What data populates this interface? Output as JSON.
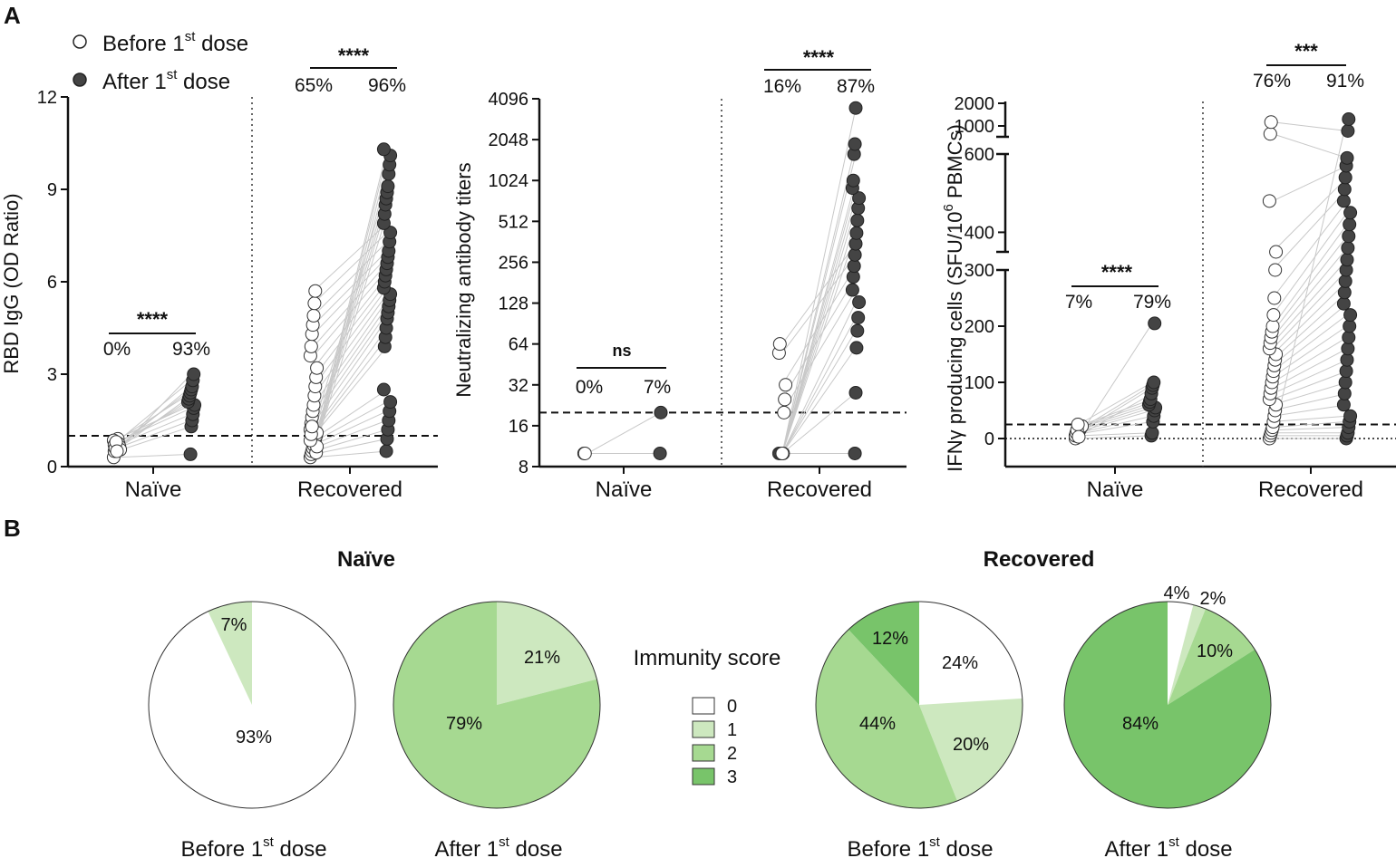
{
  "panels": {
    "a": "A",
    "b": "B"
  },
  "legend": {
    "before": "Before 1",
    "after": "After 1",
    "sup": "st",
    "dose": " dose"
  },
  "colors": {
    "before_fill": "#ffffff",
    "after_fill": "#444444",
    "line": "#c8c8c8",
    "axis": "#111111"
  },
  "chart_data": [
    {
      "type": "scatter",
      "id": "igg",
      "ylabel": "RBD IgG (OD Ratio)",
      "ylim": [
        0,
        12
      ],
      "yticks": [
        "0",
        "3",
        "6",
        "9",
        "12"
      ],
      "cutoff": 1.0,
      "groups": [
        {
          "label": "Naïve",
          "before_pct": "0%",
          "after_pct": "93%",
          "sig": "****",
          "before": [
            0.3,
            0.5,
            0.6,
            0.7,
            0.8,
            0.9,
            0.75,
            0.65,
            0.55,
            0.85,
            0.7,
            0.6,
            0.8,
            0.5
          ],
          "after": [
            0.4,
            1.3,
            1.5,
            1.7,
            1.9,
            2.0,
            2.1,
            2.2,
            2.3,
            2.4,
            2.5,
            2.6,
            2.8,
            3.0
          ]
        },
        {
          "label": "Recovered",
          "before_pct": "65%",
          "after_pct": "96%",
          "sig": "****",
          "before": [
            0.3,
            0.4,
            0.5,
            0.6,
            0.7,
            0.8,
            0.9,
            1.0,
            1.1,
            1.2,
            1.4,
            1.6,
            1.8,
            2.0,
            2.3,
            2.6,
            2.9,
            3.2,
            3.6,
            3.9,
            4.3,
            4.6,
            4.9,
            5.3,
            5.7,
            0.45,
            0.65,
            0.85,
            1.05,
            1.3
          ],
          "after": [
            0.5,
            0.9,
            1.2,
            1.5,
            1.8,
            2.1,
            2.5,
            3.9,
            4.2,
            4.5,
            4.8,
            5.0,
            5.2,
            5.4,
            5.6,
            5.8,
            6.0,
            6.2,
            6.4,
            6.6,
            6.8,
            7.0,
            7.3,
            7.6,
            7.9,
            8.2,
            8.5,
            8.7,
            8.9,
            9.1,
            9.5,
            9.8,
            10.1,
            10.3
          ]
        }
      ]
    },
    {
      "type": "scatter",
      "id": "nab",
      "ylabel": "Neutralizing antibody titers",
      "scale": "log2",
      "ylim": [
        8,
        4096
      ],
      "yticks": [
        "8",
        "16",
        "32",
        "64",
        "128",
        "256",
        "512",
        "1024",
        "2048",
        "4096"
      ],
      "cutoff": 20,
      "groups": [
        {
          "label": "Naïve",
          "before_pct": "0%",
          "after_pct": "7%",
          "sig": "ns",
          "before": [
            10,
            10
          ],
          "after": [
            10,
            20
          ]
        },
        {
          "label": "Recovered",
          "before_pct": "16%",
          "after_pct": "87%",
          "sig": "****",
          "before": [
            10,
            10,
            10,
            10,
            10,
            10,
            20,
            25,
            32,
            55,
            64,
            10,
            10,
            10
          ],
          "after": [
            10,
            28,
            60,
            80,
            100,
            130,
            160,
            200,
            240,
            290,
            350,
            420,
            520,
            640,
            760,
            900,
            1024,
            1600,
            1900,
            3500
          ]
        }
      ]
    },
    {
      "type": "scatter",
      "id": "ifn",
      "ylabel": "IFNγ producing cells (SFU/10",
      "ylabel_sup": "6",
      "ylabel_end": " PBMCs)",
      "yticks_low": [
        "0",
        "100",
        "200",
        "300"
      ],
      "yticks_mid": [
        "400",
        "600"
      ],
      "yticks_high": [
        "1000",
        "2000"
      ],
      "cutoff": 25,
      "groups": [
        {
          "label": "Naïve",
          "before_pct": "7%",
          "after_pct": "79%",
          "sig": "****",
          "before": [
            0,
            5,
            8,
            10,
            12,
            15,
            18,
            20,
            22,
            5,
            10,
            15,
            25,
            3
          ],
          "after": [
            5,
            10,
            30,
            40,
            50,
            55,
            60,
            65,
            70,
            80,
            90,
            95,
            100,
            205
          ]
        },
        {
          "label": "Recovered",
          "before_pct": "76%",
          "after_pct": "91%",
          "sig": "***",
          "before": [
            0,
            5,
            10,
            15,
            20,
            30,
            40,
            50,
            60,
            70,
            80,
            90,
            100,
            110,
            120,
            130,
            140,
            150,
            160,
            170,
            180,
            190,
            200,
            220,
            250,
            300,
            350,
            480,
            900,
            1300
          ],
          "after": [
            0,
            5,
            10,
            20,
            30,
            40,
            60,
            80,
            100,
            120,
            140,
            160,
            180,
            200,
            220,
            240,
            260,
            280,
            300,
            330,
            360,
            390,
            420,
            450,
            480,
            510,
            540,
            570,
            590,
            1000,
            1400
          ]
        }
      ]
    },
    {
      "type": "pie",
      "group_title": "Naïve",
      "pies": [
        {
          "caption": "Before 1",
          "values": [
            93,
            7,
            0,
            0
          ],
          "labels": [
            "93%",
            "7%",
            "",
            ""
          ]
        },
        {
          "caption": "After 1",
          "values": [
            0,
            21,
            79,
            0
          ],
          "labels": [
            "",
            "21%",
            "79%",
            ""
          ]
        }
      ]
    },
    {
      "type": "pie",
      "group_title": "Recovered",
      "pies": [
        {
          "caption": "Before 1",
          "values": [
            24,
            20,
            44,
            12
          ],
          "labels": [
            "24%",
            "20%",
            "44%",
            "12%"
          ]
        },
        {
          "caption": "After 1",
          "values": [
            4,
            2,
            10,
            84
          ],
          "labels": [
            "4%",
            "2%",
            "10%",
            "84%"
          ]
        }
      ]
    }
  ],
  "immunity": {
    "title": "Immunity score",
    "levels": [
      "0",
      "1",
      "2",
      "3"
    ],
    "colors": [
      "#ffffff",
      "#cde8bf",
      "#a6d991",
      "#78c46a"
    ]
  }
}
